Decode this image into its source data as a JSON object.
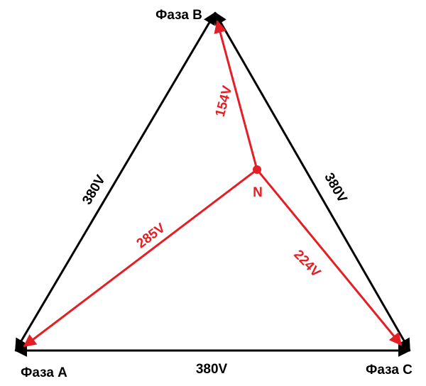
{
  "nodes": {
    "phase_a": "Фаза A",
    "phase_b": "Фаза B",
    "phase_c": "Фаза C",
    "neutral": "N"
  },
  "line_voltages": {
    "ab": "380V",
    "bc": "380V",
    "ca": "380V"
  },
  "phase_voltages": {
    "nb": "154V",
    "na": "285V",
    "nc": "224V"
  }
}
